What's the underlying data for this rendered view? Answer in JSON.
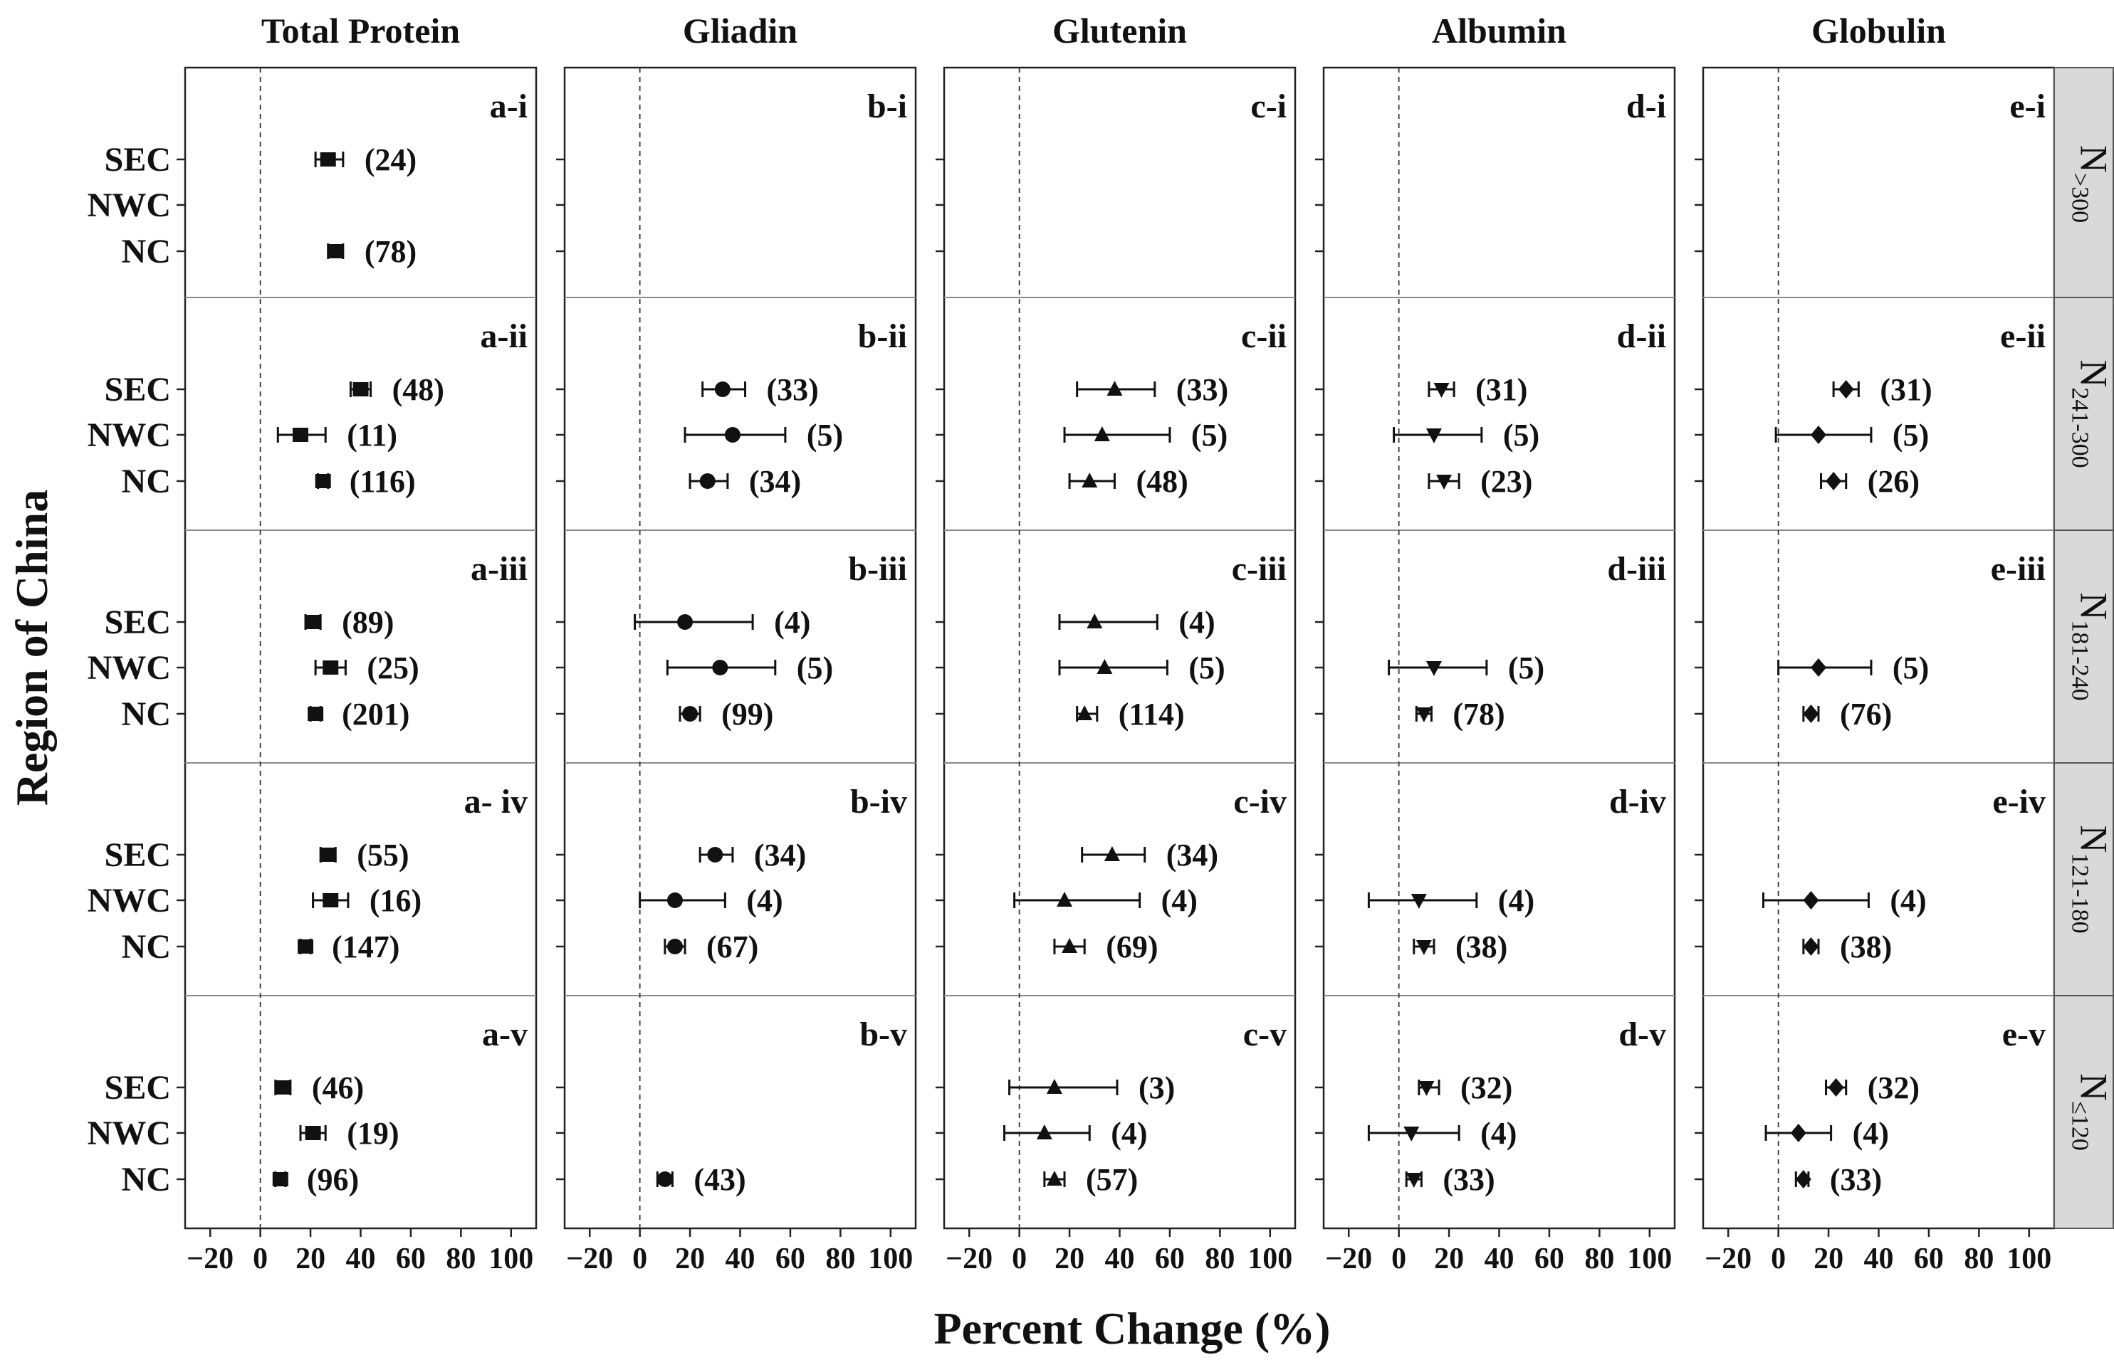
{
  "chart_data": {
    "type": "forest",
    "xlabel": "Percent Change (%)",
    "ylabel": "Region of China",
    "xlim": [
      -30,
      110
    ],
    "xticks": [
      -20,
      0,
      20,
      40,
      60,
      80,
      100
    ],
    "xtick_labels": [
      "−20",
      "0",
      "20",
      "40",
      "60",
      "80",
      "100"
    ],
    "regions": [
      "SEC",
      "NWC",
      "NC"
    ],
    "columns": [
      {
        "title": "Total Protein",
        "letter": "a",
        "marker": "square"
      },
      {
        "title": "Gliadin",
        "letter": "b",
        "marker": "circle"
      },
      {
        "title": "Glutenin",
        "letter": "c",
        "marker": "triangle-up"
      },
      {
        "title": "Albumin",
        "letter": "d",
        "marker": "triangle-down"
      },
      {
        "title": "Globulin",
        "letter": "e",
        "marker": "diamond"
      }
    ],
    "rows": [
      {
        "roman": "i",
        "strip": {
          "main": "N",
          "sub": ">300"
        }
      },
      {
        "roman": "ii",
        "strip": {
          "main": "N",
          "sub": "241-300"
        }
      },
      {
        "roman": "iii",
        "strip": {
          "main": "N",
          "sub": "181-240"
        }
      },
      {
        "roman": "iv",
        "strip": {
          "main": "N",
          "sub": "121-180"
        }
      },
      {
        "roman": "v",
        "strip": {
          "main": "N",
          "sub": "≤120"
        }
      }
    ],
    "panel_labels": [
      [
        "a-i",
        "b-i",
        "c-i",
        "d-i",
        "e-i"
      ],
      [
        "a-ii",
        "b-ii",
        "c-ii",
        "d-ii",
        "e-ii"
      ],
      [
        "a-iii",
        "b-iii",
        "c-iii",
        "d-iii",
        "e-iii"
      ],
      [
        "a- iv",
        "b-iv",
        "c-iv",
        "d-iv",
        "e-iv"
      ],
      [
        "a-v",
        "b-v",
        "c-v",
        "d-v",
        "e-v"
      ]
    ],
    "points": [
      {
        "col": 0,
        "row": 0,
        "region": "SEC",
        "mean": 27,
        "low": 22,
        "high": 33,
        "n": "24"
      },
      {
        "col": 0,
        "row": 0,
        "region": "NC",
        "mean": 30,
        "low": 27,
        "high": 33,
        "n": "78"
      },
      {
        "col": 0,
        "row": 1,
        "region": "SEC",
        "mean": 40,
        "low": 36,
        "high": 44,
        "n": "48"
      },
      {
        "col": 0,
        "row": 1,
        "region": "NWC",
        "mean": 16,
        "low": 7,
        "high": 26,
        "n": "11"
      },
      {
        "col": 0,
        "row": 1,
        "region": "NC",
        "mean": 25,
        "low": 23,
        "high": 27,
        "n": "116"
      },
      {
        "col": 0,
        "row": 2,
        "region": "SEC",
        "mean": 21,
        "low": 18,
        "high": 24,
        "n": "89"
      },
      {
        "col": 0,
        "row": 2,
        "region": "NWC",
        "mean": 28,
        "low": 22,
        "high": 34,
        "n": "25"
      },
      {
        "col": 0,
        "row": 2,
        "region": "NC",
        "mean": 22,
        "low": 20,
        "high": 24,
        "n": "201"
      },
      {
        "col": 0,
        "row": 3,
        "region": "SEC",
        "mean": 27,
        "low": 24,
        "high": 30,
        "n": "55"
      },
      {
        "col": 0,
        "row": 3,
        "region": "NWC",
        "mean": 28,
        "low": 21,
        "high": 35,
        "n": "16"
      },
      {
        "col": 0,
        "row": 3,
        "region": "NC",
        "mean": 18,
        "low": 16,
        "high": 20,
        "n": "147"
      },
      {
        "col": 0,
        "row": 4,
        "region": "SEC",
        "mean": 9,
        "low": 6,
        "high": 12,
        "n": "46"
      },
      {
        "col": 0,
        "row": 4,
        "region": "NWC",
        "mean": 21,
        "low": 16,
        "high": 26,
        "n": "19"
      },
      {
        "col": 0,
        "row": 4,
        "region": "NC",
        "mean": 8,
        "low": 6,
        "high": 10,
        "n": "96"
      },
      {
        "col": 1,
        "row": 1,
        "region": "SEC",
        "mean": 33,
        "low": 25,
        "high": 42,
        "n": "33"
      },
      {
        "col": 1,
        "row": 1,
        "region": "NWC",
        "mean": 37,
        "low": 18,
        "high": 58,
        "n": "5"
      },
      {
        "col": 1,
        "row": 1,
        "region": "NC",
        "mean": 27,
        "low": 20,
        "high": 35,
        "n": "34"
      },
      {
        "col": 1,
        "row": 2,
        "region": "SEC",
        "mean": 18,
        "low": -2,
        "high": 45,
        "n": "4"
      },
      {
        "col": 1,
        "row": 2,
        "region": "NWC",
        "mean": 32,
        "low": 11,
        "high": 54,
        "n": "5"
      },
      {
        "col": 1,
        "row": 2,
        "region": "NC",
        "mean": 20,
        "low": 16,
        "high": 24,
        "n": "99"
      },
      {
        "col": 1,
        "row": 3,
        "region": "SEC",
        "mean": 30,
        "low": 24,
        "high": 37,
        "n": "34"
      },
      {
        "col": 1,
        "row": 3,
        "region": "NWC",
        "mean": 14,
        "low": 0,
        "high": 34,
        "n": "4"
      },
      {
        "col": 1,
        "row": 3,
        "region": "NC",
        "mean": 14,
        "low": 10,
        "high": 18,
        "n": "67"
      },
      {
        "col": 1,
        "row": 4,
        "region": "NC",
        "mean": 10,
        "low": 7,
        "high": 13,
        "n": "43"
      },
      {
        "col": 2,
        "row": 1,
        "region": "SEC",
        "mean": 38,
        "low": 23,
        "high": 54,
        "n": "33"
      },
      {
        "col": 2,
        "row": 1,
        "region": "NWC",
        "mean": 33,
        "low": 18,
        "high": 60,
        "n": "5"
      },
      {
        "col": 2,
        "row": 1,
        "region": "NC",
        "mean": 28,
        "low": 20,
        "high": 38,
        "n": "48"
      },
      {
        "col": 2,
        "row": 2,
        "region": "SEC",
        "mean": 30,
        "low": 16,
        "high": 55,
        "n": "4"
      },
      {
        "col": 2,
        "row": 2,
        "region": "NWC",
        "mean": 34,
        "low": 16,
        "high": 59,
        "n": "5"
      },
      {
        "col": 2,
        "row": 2,
        "region": "NC",
        "mean": 26,
        "low": 23,
        "high": 31,
        "n": "114"
      },
      {
        "col": 2,
        "row": 3,
        "region": "SEC",
        "mean": 37,
        "low": 25,
        "high": 50,
        "n": "34"
      },
      {
        "col": 2,
        "row": 3,
        "region": "NWC",
        "mean": 18,
        "low": -2,
        "high": 48,
        "n": "4"
      },
      {
        "col": 2,
        "row": 3,
        "region": "NC",
        "mean": 20,
        "low": 14,
        "high": 26,
        "n": "69"
      },
      {
        "col": 2,
        "row": 4,
        "region": "SEC",
        "mean": 14,
        "low": -4,
        "high": 39,
        "n": "3"
      },
      {
        "col": 2,
        "row": 4,
        "region": "NWC",
        "mean": 10,
        "low": -6,
        "high": 28,
        "n": "4"
      },
      {
        "col": 2,
        "row": 4,
        "region": "NC",
        "mean": 14,
        "low": 10,
        "high": 18,
        "n": "57"
      },
      {
        "col": 3,
        "row": 1,
        "region": "SEC",
        "mean": 17,
        "low": 12,
        "high": 22,
        "n": "31"
      },
      {
        "col": 3,
        "row": 1,
        "region": "NWC",
        "mean": 14,
        "low": -2,
        "high": 33,
        "n": "5"
      },
      {
        "col": 3,
        "row": 1,
        "region": "NC",
        "mean": 18,
        "low": 12,
        "high": 24,
        "n": "23"
      },
      {
        "col": 3,
        "row": 2,
        "region": "NWC",
        "mean": 14,
        "low": -4,
        "high": 35,
        "n": "5"
      },
      {
        "col": 3,
        "row": 2,
        "region": "NC",
        "mean": 10,
        "low": 7,
        "high": 13,
        "n": "78"
      },
      {
        "col": 3,
        "row": 3,
        "region": "NWC",
        "mean": 8,
        "low": -12,
        "high": 31,
        "n": "4"
      },
      {
        "col": 3,
        "row": 3,
        "region": "NC",
        "mean": 10,
        "low": 6,
        "high": 14,
        "n": "38"
      },
      {
        "col": 3,
        "row": 4,
        "region": "SEC",
        "mean": 11,
        "low": 8,
        "high": 16,
        "n": "32"
      },
      {
        "col": 3,
        "row": 4,
        "region": "NWC",
        "mean": 5,
        "low": -12,
        "high": 24,
        "n": "4"
      },
      {
        "col": 3,
        "row": 4,
        "region": "NC",
        "mean": 6,
        "low": 3,
        "high": 9,
        "n": "33"
      },
      {
        "col": 4,
        "row": 1,
        "region": "SEC",
        "mean": 27,
        "low": 22,
        "high": 32,
        "n": "31"
      },
      {
        "col": 4,
        "row": 1,
        "region": "NWC",
        "mean": 16,
        "low": -1,
        "high": 37,
        "n": "5"
      },
      {
        "col": 4,
        "row": 1,
        "region": "NC",
        "mean": 22,
        "low": 17,
        "high": 27,
        "n": "26"
      },
      {
        "col": 4,
        "row": 2,
        "region": "NWC",
        "mean": 16,
        "low": 0,
        "high": 37,
        "n": "5"
      },
      {
        "col": 4,
        "row": 2,
        "region": "NC",
        "mean": 13,
        "low": 10,
        "high": 16,
        "n": "76"
      },
      {
        "col": 4,
        "row": 3,
        "region": "NWC",
        "mean": 13,
        "low": -6,
        "high": 36,
        "n": "4"
      },
      {
        "col": 4,
        "row": 3,
        "region": "NC",
        "mean": 13,
        "low": 10,
        "high": 16,
        "n": "38"
      },
      {
        "col": 4,
        "row": 4,
        "region": "SEC",
        "mean": 23,
        "low": 19,
        "high": 27,
        "n": "32"
      },
      {
        "col": 4,
        "row": 4,
        "region": "NWC",
        "mean": 8,
        "low": -5,
        "high": 21,
        "n": "4"
      },
      {
        "col": 4,
        "row": 4,
        "region": "NC",
        "mean": 10,
        "low": 7,
        "high": 12,
        "n": "33"
      }
    ]
  }
}
